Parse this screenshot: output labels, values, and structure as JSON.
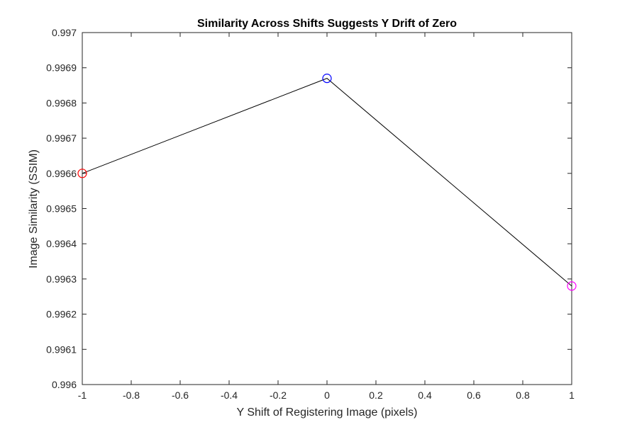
{
  "chart_data": {
    "type": "line",
    "title": "Similarity Across Shifts Suggests Y Drift of Zero",
    "xlabel": "Y Shift of Registering Image (pixels)",
    "ylabel": "Image Similarity (SSIM)",
    "xlim": [
      -1,
      1
    ],
    "ylim": [
      0.996,
      0.997
    ],
    "xticks": [
      -1,
      -0.8,
      -0.6,
      -0.4,
      -0.2,
      0,
      0.2,
      0.4,
      0.6,
      0.8,
      1
    ],
    "xtick_labels": [
      "-1",
      "-0.8",
      "-0.6",
      "-0.4",
      "-0.2",
      "0",
      "0.2",
      "0.4",
      "0.6",
      "0.8",
      "1"
    ],
    "yticks": [
      0.996,
      0.9961,
      0.9962,
      0.9963,
      0.9964,
      0.9965,
      0.9966,
      0.9967,
      0.9968,
      0.9969,
      0.997
    ],
    "ytick_labels": [
      "0.996",
      "0.9961",
      "0.9962",
      "0.9963",
      "0.9964",
      "0.9965",
      "0.9966",
      "0.9967",
      "0.9968",
      "0.9969",
      "0.997"
    ],
    "grid": false,
    "line_color": "#000000",
    "points": [
      {
        "x": -1,
        "y": 0.9966,
        "color": "#ff0000"
      },
      {
        "x": 0,
        "y": 0.99687,
        "color": "#0000ff"
      },
      {
        "x": 1,
        "y": 0.99628,
        "color": "#ff00ff"
      }
    ]
  }
}
